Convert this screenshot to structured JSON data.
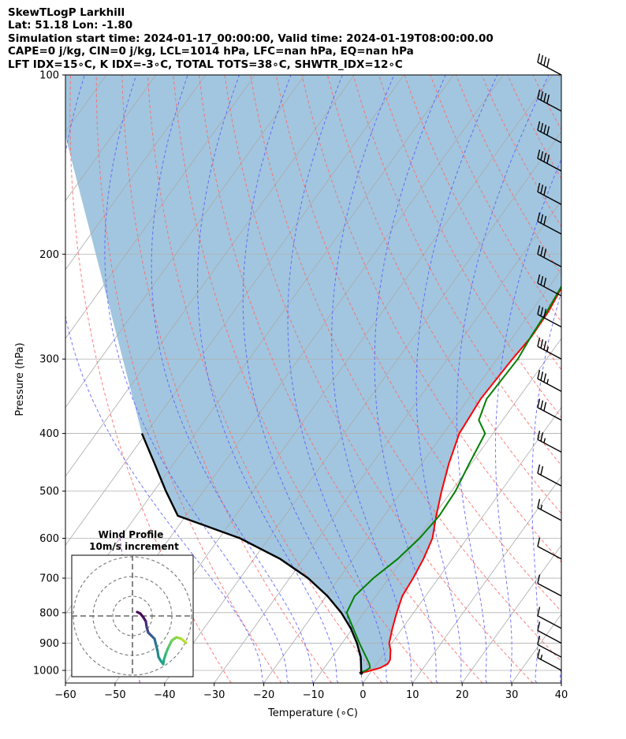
{
  "header": {
    "lines": [
      "SkewTLogP Larkhill",
      "Lat: 51.18   Lon: -1.80",
      "Simulation start time: 2024-01-17_00:00:00, Valid time: 2024-01-19T08:00:00.00",
      "CAPE=0 j/kg, CIN=0 j/kg, LCL=1014 hPa, LFC=nan hPa, EQ=nan hPa",
      "LFT IDX=15∘C, K IDX=-3∘C, TOTAL TOTS=38∘C, SHWTR_IDX=12∘C"
    ]
  },
  "chart_data": {
    "type": "line",
    "subtype": "skew-T log-P diagram",
    "xlabel": "Temperature (∘C)",
    "ylabel": "Pressure (hPa)",
    "x_ticks": [
      -60,
      -50,
      -40,
      -30,
      -20,
      -10,
      0,
      10,
      20,
      30,
      40
    ],
    "y_ticks": [
      100,
      200,
      300,
      400,
      500,
      600,
      700,
      800,
      900,
      1000
    ],
    "xlim": [
      -60,
      40
    ],
    "ylim": [
      1050,
      100
    ],
    "y_scale": "log",
    "grid": true,
    "colors": {
      "temperature": "#ff0000",
      "dewpoint": "#008000",
      "parcel": "#000000",
      "shade": "#a2c6df",
      "dry_adiabats": "#ff6666",
      "moist_adiabats": "#5555ff",
      "mixing_ratio": "#9933cc",
      "isotherms": "#aaaaaa"
    },
    "series": [
      {
        "key": "temperature",
        "x": [
          -1.8,
          -0.2,
          1.3,
          2.2,
          2.1,
          0.8,
          -0.5,
          -2.0,
          -3.4,
          -4.7,
          -5.1,
          -5.8,
          -7.0,
          -9.5,
          -12.0,
          -14.5,
          -16.8,
          -17.5,
          -16.9,
          -16.3,
          -16.5,
          -17.4,
          -17.9,
          -18.4,
          -19.6,
          -22.0,
          -21.6,
          -20.8,
          -19.8,
          -18.4,
          -17.2
        ],
        "y": [
          1010,
          1000,
          990,
          975,
          960,
          925,
          900,
          850,
          800,
          750,
          700,
          650,
          600,
          550,
          500,
          450,
          400,
          350,
          300,
          275,
          250,
          225,
          200,
          180,
          165,
          150,
          135,
          125,
          115,
          107,
          100
        ]
      },
      {
        "key": "dewpoint",
        "x": [
          -2.2,
          -1.2,
          -0.8,
          -1.5,
          -6.5,
          -13.5,
          -14.3,
          -13.1,
          -11.0,
          -9.6,
          -8.9,
          -9.2,
          -10.4,
          -11.6,
          -14.8,
          -16.3,
          -15.8,
          -16.4,
          -16.8,
          -17.6,
          -19.7,
          -23.2,
          -25.2,
          -25.9,
          -26.6,
          -29.0,
          -30.6,
          -31.2,
          -31.2,
          -31.2,
          -31.0
        ],
        "y": [
          1010,
          1000,
          990,
          975,
          900,
          800,
          750,
          700,
          650,
          600,
          550,
          500,
          450,
          400,
          380,
          350,
          300,
          275,
          250,
          225,
          200,
          180,
          165,
          150,
          135,
          125,
          115,
          107,
          100,
          100,
          100
        ]
      },
      {
        "key": "parcel",
        "x": [
          -1.8,
          -4.2,
          -7.0,
          -10.4,
          -14.6,
          -19.8,
          -26.3,
          -34.7,
          -45.8,
          -61.6,
          -67.6,
          -73.8,
          -80.8
        ],
        "y": [
          1010,
          950,
          900,
          850,
          800,
          750,
          700,
          650,
          600,
          550,
          500,
          450,
          400
        ]
      }
    ],
    "wind_barbs": {
      "pressure_hPa": [
        100,
        115,
        130,
        145,
        165,
        185,
        210,
        235,
        265,
        300,
        340,
        380,
        430,
        490,
        560,
        650,
        750,
        850,
        900,
        950,
        1000
      ],
      "speed_kt": [
        40,
        40,
        40,
        40,
        30,
        30,
        30,
        30,
        30,
        35,
        35,
        30,
        25,
        20,
        15,
        10,
        10,
        10,
        10,
        10,
        15
      ]
    },
    "hodograph": {
      "title": "Wind Profile",
      "subtitle": "10m/s increment",
      "rings_ms": [
        10,
        20,
        30
      ]
    }
  }
}
